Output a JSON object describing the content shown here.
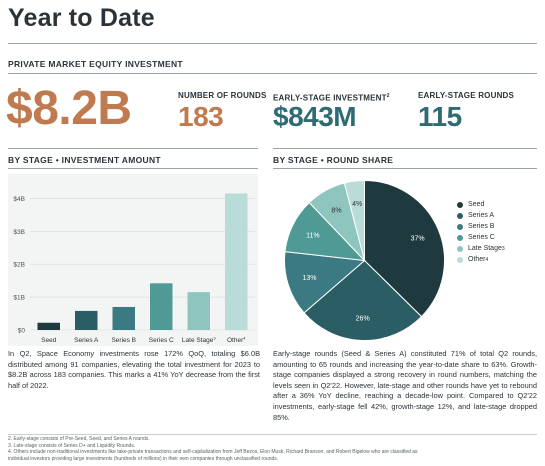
{
  "page": {
    "title": "Year to Date",
    "section_header": "PRIVATE MARKET EQUITY INVESTMENT"
  },
  "stats": {
    "total_investment": {
      "value": "$8.2B",
      "color": "#c07a4f"
    },
    "number_of_rounds": {
      "label": "NUMBER OF ROUNDS",
      "value": "183",
      "color": "#c07a4f"
    },
    "early_stage_investment": {
      "label": "EARLY-STAGE INVESTMENT",
      "note": "2",
      "value": "$843M",
      "color": "#2e6b73"
    },
    "early_stage_rounds": {
      "label": "EARLY-STAGE ROUNDS",
      "value": "115",
      "color": "#2e6b73"
    }
  },
  "left_panel": {
    "header": "BY STAGE  •  INVESTMENT AMOUNT",
    "description": "In Q2, Space Economy investments rose 172% QoQ, totaling $6.0B distributed among 91 companies, elevating the total investment for 2023 to $8.2B across 183 companies. This marks a 41% YoY decrease from the first half of 2022."
  },
  "right_panel": {
    "header": "BY STAGE  •  ROUND SHARE",
    "description": "Early-stage rounds (Seed & Series A) constituted 71% of total Q2 rounds, amounting to 65 rounds and increasing the year-to-date share to 63%. Growth-stage companies displayed a strong recovery in round numbers, matching the levels seen in Q2'22. However, late-stage and other rounds have yet to rebound after a 36% YoY decline, reaching a decade-low point. Compared to Q2'22 investments, early-stage fell 42%, growth-stage 12%, and late-stage dropped 85%."
  },
  "footnotes": [
    "2. Early-stage consists of Pre-Seed, Seed, and Series A rounds.",
    "3. Late-stage consists of Series D+ and Liquidity Rounds.",
    "4. Others include non-traditional investments like take-private transactions and self-capitalization from Jeff Bezos, Elon Musk, Richard Branson, and Robert Bigelow who are classified as",
    "individual investors providing large investments (hundreds of millions) in their own companies through unclassified rounds."
  ],
  "chart_data": [
    {
      "type": "bar",
      "categories": [
        "Seed",
        "Series A",
        "Series B",
        "Series C",
        "Late Stage",
        "Other"
      ],
      "category_notes": [
        "",
        "",
        "",
        "",
        "3",
        "4"
      ],
      "values": [
        0.22,
        0.58,
        0.7,
        1.42,
        1.15,
        4.15
      ],
      "colors": [
        "#1e3a3f",
        "#2b5d65",
        "#3b7a82",
        "#4f9a95",
        "#8fc5bf",
        "#b9dcd8"
      ],
      "ylim": [
        0,
        4.5
      ],
      "yticks": [
        0,
        1,
        2,
        3,
        4
      ],
      "ytick_labels": [
        "$0",
        "$1B",
        "$2B",
        "$3B",
        "$4B"
      ],
      "title": "",
      "xlabel": "",
      "ylabel": ""
    },
    {
      "type": "pie",
      "labels": [
        "Seed",
        "Series A",
        "Series B",
        "Series C",
        "Late Stage",
        "Other"
      ],
      "label_notes": [
        "",
        "",
        "",
        "",
        "3",
        "4"
      ],
      "values": [
        37,
        26,
        13,
        11,
        8,
        4
      ],
      "value_labels": [
        "37%",
        "26%",
        "13%",
        "11%",
        "8%",
        "4%"
      ],
      "colors": [
        "#1e3a3f",
        "#2b5d65",
        "#3b7a82",
        "#4f9a95",
        "#8fc5bf",
        "#b9dcd8"
      ],
      "legend": "right"
    }
  ]
}
